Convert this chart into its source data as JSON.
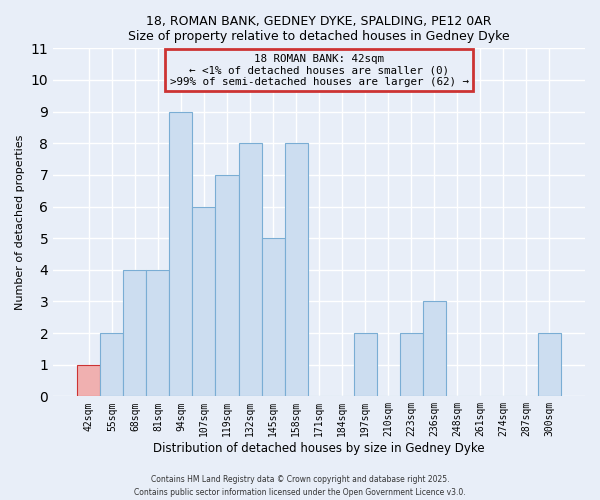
{
  "title1": "18, ROMAN BANK, GEDNEY DYKE, SPALDING, PE12 0AR",
  "title2": "Size of property relative to detached houses in Gedney Dyke",
  "xlabel": "Distribution of detached houses by size in Gedney Dyke",
  "ylabel": "Number of detached properties",
  "bins": [
    "42sqm",
    "55sqm",
    "68sqm",
    "81sqm",
    "94sqm",
    "107sqm",
    "119sqm",
    "132sqm",
    "145sqm",
    "158sqm",
    "171sqm",
    "184sqm",
    "197sqm",
    "210sqm",
    "223sqm",
    "236sqm",
    "248sqm",
    "261sqm",
    "274sqm",
    "287sqm",
    "300sqm"
  ],
  "counts": [
    1,
    2,
    4,
    4,
    9,
    6,
    7,
    8,
    5,
    8,
    0,
    0,
    2,
    0,
    2,
    3,
    0,
    0,
    0,
    0,
    2
  ],
  "highlight_bin": 0,
  "bar_color": "#ccddf0",
  "bar_edge_color": "#7aadd4",
  "highlight_color": "#f0b0b0",
  "highlight_edge_color": "#cc3333",
  "ylim": [
    0,
    11
  ],
  "yticks": [
    0,
    1,
    2,
    3,
    4,
    5,
    6,
    7,
    8,
    9,
    10,
    11
  ],
  "annotation_title": "18 ROMAN BANK: 42sqm",
  "annotation_line1": "← <1% of detached houses are smaller (0)",
  "annotation_line2": ">99% of semi-detached houses are larger (62) →",
  "footer1": "Contains HM Land Registry data © Crown copyright and database right 2025.",
  "footer2": "Contains public sector information licensed under the Open Government Licence v3.0.",
  "background_color": "#e8eef8",
  "grid_color": "#ffffff",
  "ann_box_color": "#cc3333"
}
